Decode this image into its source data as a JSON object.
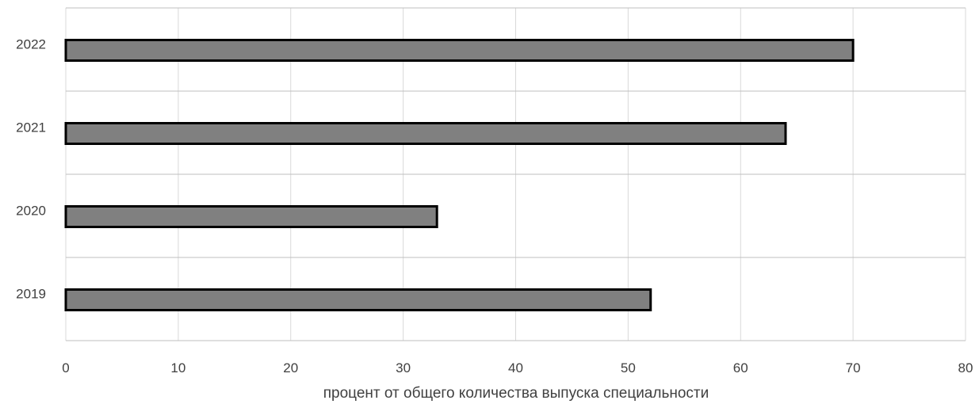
{
  "chart_data": {
    "type": "bar",
    "orientation": "horizontal",
    "categories": [
      "2019",
      "2020",
      "2021",
      "2022"
    ],
    "values": [
      52,
      33,
      64,
      70
    ],
    "title": "",
    "xlabel": "процент от общего количества выпуска специальности",
    "ylabel": "",
    "xlim": [
      0,
      80
    ],
    "xticks": [
      0,
      10,
      20,
      30,
      40,
      50,
      60,
      70,
      80
    ],
    "grid": true,
    "legend": "none",
    "colors": {
      "bar_fill": "#808080",
      "bar_stroke": "#000000",
      "grid": "#d9d9d9",
      "text": "#404040",
      "plot_border": "#bfbfbf"
    }
  }
}
